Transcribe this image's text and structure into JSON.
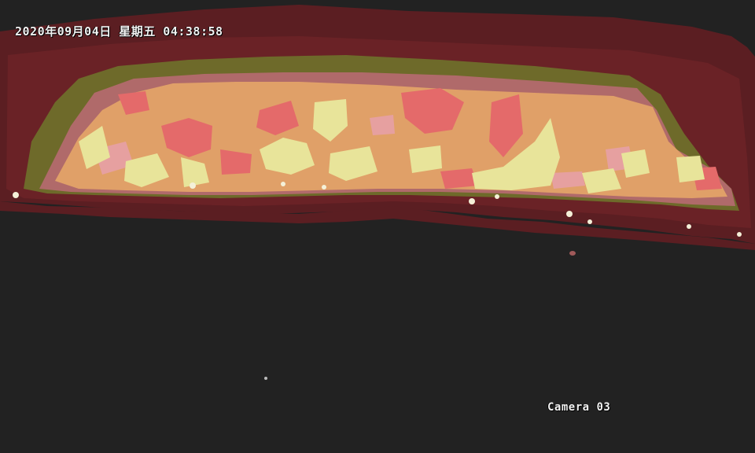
{
  "overlay": {
    "timestamp": "2020年09月04日  星期五 04:38:58",
    "camera_label": "Camera 03"
  },
  "palette": {
    "background": "#222222",
    "outer_band": "#5b1e22",
    "olive_band": "#6e6a2a",
    "mauve": "#b87070",
    "warm_orange": "#e0a068",
    "hot_pink": "#e46a6a",
    "pale_yellow": "#e8e49a",
    "hottest_white": "#f4f0d8"
  }
}
